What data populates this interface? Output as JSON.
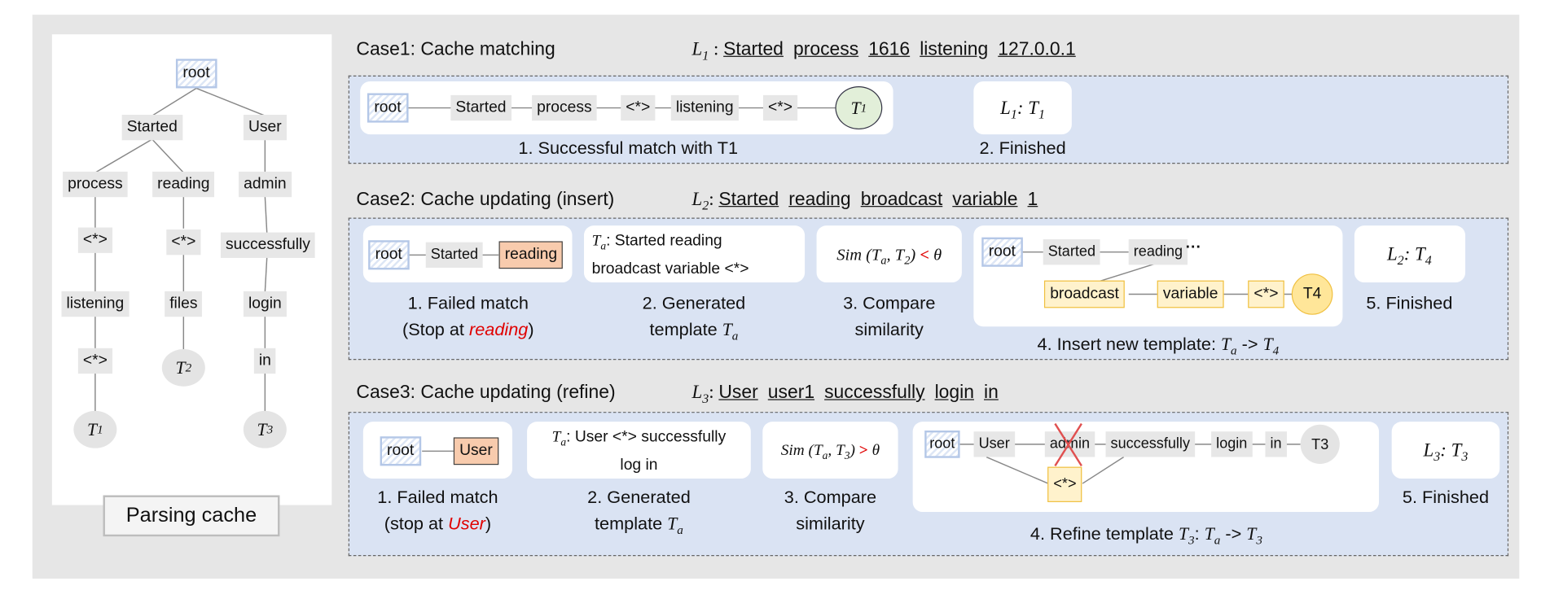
{
  "tree": {
    "label": "Parsing cache",
    "nodes": [
      "root",
      "Started",
      "User",
      "process",
      "reading",
      "admin",
      "<*>",
      "<*>",
      "successfully",
      "listening",
      "files",
      "login",
      "<*>",
      "in"
    ],
    "templates": [
      {
        "var": "T",
        "sub": "1"
      },
      {
        "var": "T",
        "sub": "2"
      },
      {
        "var": "T",
        "sub": "3"
      }
    ]
  },
  "case1": {
    "title": "Case1: Cache matching",
    "log": {
      "var": "L",
      "sub": "1",
      "tokens": [
        "Started",
        "process",
        "1616",
        "listening",
        "127.0.0.1"
      ]
    },
    "chain": [
      "root",
      "Started",
      "process",
      "<*>",
      "listening",
      "<*>"
    ],
    "template": {
      "var": "T",
      "sub": "1"
    },
    "step1": "1. Successful match with T1",
    "result": {
      "l": "L",
      "lsub": "1",
      "t": "T",
      "tsub": "1"
    },
    "step2": "2. Finished"
  },
  "case2": {
    "title": "Case2: Cache updating (insert)",
    "log": {
      "var": "L",
      "sub": "2",
      "tokens": [
        "Started",
        "reading",
        "broadcast",
        "variable",
        "1"
      ]
    },
    "chain": [
      "root",
      "Started",
      "reading"
    ],
    "step1a": "1. Failed match",
    "step1b_pre": "(Stop at ",
    "step1b_em": "reading",
    "step1b_post": ")",
    "gen_var": "T",
    "gen_sub": "a",
    "gen_text1": ": Started reading",
    "gen_text2": "broadcast variable  <*>",
    "step2a": "2. Generated",
    "step2b": "template ",
    "sim": {
      "fn": "Sim",
      "op": "<",
      "theta": "θ",
      "args": "T",
      "a": "a",
      "b": "2"
    },
    "step3a": "3. Compare",
    "step3b": "similarity",
    "insert_chain": [
      "root",
      "Started",
      "reading"
    ],
    "ellipsis": "···",
    "insert_new": [
      "broadcast",
      "variable",
      "<*>"
    ],
    "new_template": "T4",
    "step4": "4. Insert new template: ",
    "step4_sub_a": "a",
    "step4_arrow": " -> ",
    "step4_sub_b": "4",
    "result": {
      "l": "L",
      "lsub": "2",
      "t": "T",
      "tsub": "4"
    },
    "step5": "5. Finished"
  },
  "case3": {
    "title": "Case3: Cache updating (refine)",
    "log": {
      "var": "L",
      "sub": "3",
      "tokens": [
        "User",
        "user1",
        "successfully",
        "login",
        "in"
      ]
    },
    "chain": [
      "root",
      "User"
    ],
    "step1a": "1. Failed match",
    "step1b_pre": "(stop at ",
    "step1b_em": "User",
    "step1b_post": ")",
    "gen_text1": ": User <*> successfully",
    "gen_text2": "log in",
    "step2a": "2. Generated",
    "step2b": "template ",
    "sim": {
      "fn": "Sim",
      "op": ">",
      "theta": "θ",
      "a": "a",
      "b": "3"
    },
    "step3a": "3. Compare",
    "step3b": "similarity",
    "refine_chain": [
      "root",
      "User",
      "admin",
      "successfully",
      "login",
      "in"
    ],
    "refine_wild": "<*>",
    "template": "T3",
    "step4": "4. Refine template ",
    "step4_t": "3",
    "result": {
      "l": "L",
      "lsub": "3",
      "t": "T",
      "tsub": "3"
    },
    "step5": "5. Finished"
  },
  "colors": {
    "panel_bg": "#dae3f3",
    "highlight": "#f8cbad",
    "new_node": "#fff2cc",
    "match_circle": "#e2efd9",
    "red": "#e00000"
  }
}
